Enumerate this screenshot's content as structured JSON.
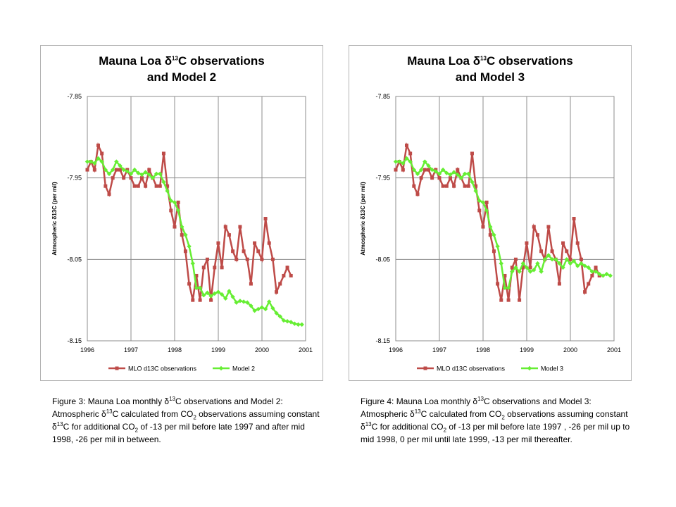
{
  "chart_data": [
    {
      "type": "line",
      "title": "Mauna Loa δ¹³C observations and Model 2",
      "title_line1_prefix": "Mauna Loa δ",
      "title_sup": "13",
      "title_line1_suffix": "C observations",
      "title_line2": "and Model 2",
      "ylabel": "Atmospheric δ13C (per mil)",
      "xlabel": "",
      "xlim": [
        1996,
        2001
      ],
      "ylim": [
        -8.15,
        -7.85
      ],
      "x_ticks": [
        "1996",
        "1997",
        "1998",
        "1999",
        "2000",
        "2001"
      ],
      "y_ticks": [
        "-7.85",
        "-7.95",
        "-8.05",
        "-8.15"
      ],
      "grid": true,
      "legend_position": "bottom",
      "x_start_year": 1996,
      "x_step": 0.0833,
      "series": [
        {
          "name": "MLO d13C observations",
          "color": "#be4b48",
          "marker": "square",
          "values": [
            -7.94,
            -7.93,
            -7.94,
            -7.91,
            -7.92,
            -7.96,
            -7.97,
            -7.95,
            -7.94,
            -7.94,
            -7.95,
            -7.94,
            -7.95,
            -7.96,
            -7.96,
            -7.95,
            -7.96,
            -7.94,
            -7.95,
            -7.96,
            -7.96,
            -7.92,
            -7.96,
            -7.99,
            -8.01,
            -7.98,
            -8.02,
            -8.04,
            -8.08,
            -8.1,
            -8.07,
            -8.1,
            -8.06,
            -8.05,
            -8.1,
            -8.06,
            -8.03,
            -8.06,
            -8.01,
            -8.02,
            -8.04,
            -8.05,
            -8.01,
            -8.04,
            -8.05,
            -8.08,
            -8.03,
            -8.04,
            -8.05,
            -8.0,
            -8.03,
            -8.05,
            -8.09,
            -8.08,
            -8.07,
            -8.06,
            -8.07
          ]
        },
        {
          "name": "Model 2",
          "color": "#66ee33",
          "marker": "diamond",
          "values": [
            -7.93,
            -7.93,
            -7.932,
            -7.926,
            -7.93,
            -7.94,
            -7.945,
            -7.94,
            -7.93,
            -7.935,
            -7.94,
            -7.942,
            -7.945,
            -7.94,
            -7.944,
            -7.946,
            -7.943,
            -7.946,
            -7.95,
            -7.945,
            -7.945,
            -7.955,
            -7.966,
            -7.978,
            -7.98,
            -7.99,
            -8.01,
            -8.02,
            -8.034,
            -8.055,
            -8.085,
            -8.085,
            -8.094,
            -8.091,
            -8.095,
            -8.092,
            -8.09,
            -8.093,
            -8.098,
            -8.089,
            -8.096,
            -8.103,
            -8.101,
            -8.102,
            -8.103,
            -8.107,
            -8.113,
            -8.111,
            -8.109,
            -8.111,
            -8.102,
            -8.11,
            -8.116,
            -8.12,
            -8.125,
            -8.126,
            -8.127,
            -8.129,
            -8.13,
            -8.13
          ]
        }
      ]
    },
    {
      "type": "line",
      "title": "Mauna Loa δ¹³C observations and Model 3",
      "title_line1_prefix": "Mauna Loa δ",
      "title_sup": "13",
      "title_line1_suffix": "C observations",
      "title_line2": "and Model 3",
      "ylabel": "Atmospheric δ13C (per mil)",
      "xlabel": "",
      "xlim": [
        1996,
        2001
      ],
      "ylim": [
        -8.15,
        -7.85
      ],
      "x_ticks": [
        "1996",
        "1997",
        "1998",
        "1999",
        "2000",
        "2001"
      ],
      "y_ticks": [
        "-7.85",
        "-7.95",
        "-8.05",
        "-8.15"
      ],
      "grid": true,
      "legend_position": "bottom",
      "x_start_year": 1996,
      "x_step": 0.0833,
      "series": [
        {
          "name": "MLO d13C observations",
          "color": "#be4b48",
          "marker": "square",
          "values": [
            -7.94,
            -7.93,
            -7.94,
            -7.91,
            -7.92,
            -7.96,
            -7.97,
            -7.95,
            -7.94,
            -7.94,
            -7.95,
            -7.94,
            -7.95,
            -7.96,
            -7.96,
            -7.95,
            -7.96,
            -7.94,
            -7.95,
            -7.96,
            -7.96,
            -7.92,
            -7.96,
            -7.99,
            -8.01,
            -7.98,
            -8.02,
            -8.04,
            -8.08,
            -8.1,
            -8.07,
            -8.1,
            -8.06,
            -8.05,
            -8.1,
            -8.06,
            -8.03,
            -8.06,
            -8.01,
            -8.02,
            -8.04,
            -8.05,
            -8.01,
            -8.04,
            -8.05,
            -8.08,
            -8.03,
            -8.04,
            -8.05,
            -8.0,
            -8.03,
            -8.05,
            -8.09,
            -8.08,
            -8.07,
            -8.06,
            -8.07
          ]
        },
        {
          "name": "Model 3",
          "color": "#66ee33",
          "marker": "diamond",
          "values": [
            -7.93,
            -7.93,
            -7.932,
            -7.926,
            -7.93,
            -7.94,
            -7.945,
            -7.94,
            -7.93,
            -7.935,
            -7.94,
            -7.942,
            -7.945,
            -7.94,
            -7.944,
            -7.946,
            -7.943,
            -7.946,
            -7.95,
            -7.945,
            -7.945,
            -7.955,
            -7.966,
            -7.978,
            -7.98,
            -7.99,
            -8.01,
            -8.02,
            -8.034,
            -8.055,
            -8.085,
            -8.085,
            -8.065,
            -8.06,
            -8.065,
            -8.055,
            -8.06,
            -8.065,
            -8.063,
            -8.055,
            -8.065,
            -8.05,
            -8.045,
            -8.05,
            -8.05,
            -8.055,
            -8.06,
            -8.05,
            -8.055,
            -8.052,
            -8.058,
            -8.055,
            -8.058,
            -8.06,
            -8.065,
            -8.065,
            -8.068,
            -8.07,
            -8.068,
            -8.07
          ]
        }
      ]
    }
  ],
  "captions": [
    {
      "p1": "Figure 3: Mauna Loa monthly δ",
      "s1": "13",
      "p2": "C observations and Model 2: Atmospheric δ",
      "s2": "13",
      "p3": "C calculated from CO",
      "b1": "2",
      "p4": " observations assuming constant δ",
      "s3": "13",
      "p5": "C for additional CO",
      "b2": "2",
      "p6": " of -13 per mil before late 1997 and after mid 1998, -26 per mil in between."
    },
    {
      "p1": "Figure 4: Mauna Loa monthly δ",
      "s1": "13",
      "p2": "C observations and Model 3: Atmospheric δ",
      "s2": "13",
      "p3": "C calculated from CO",
      "b1": "2",
      "p4": " observations assuming constant δ",
      "s3": "13",
      "p5": "C for additional CO",
      "b2": "2",
      "p6": " of -13 per mil before late 1997 , -26 per mil up to mid 1998, 0 per mil until late 1999, -13 per mil thereafter."
    }
  ]
}
